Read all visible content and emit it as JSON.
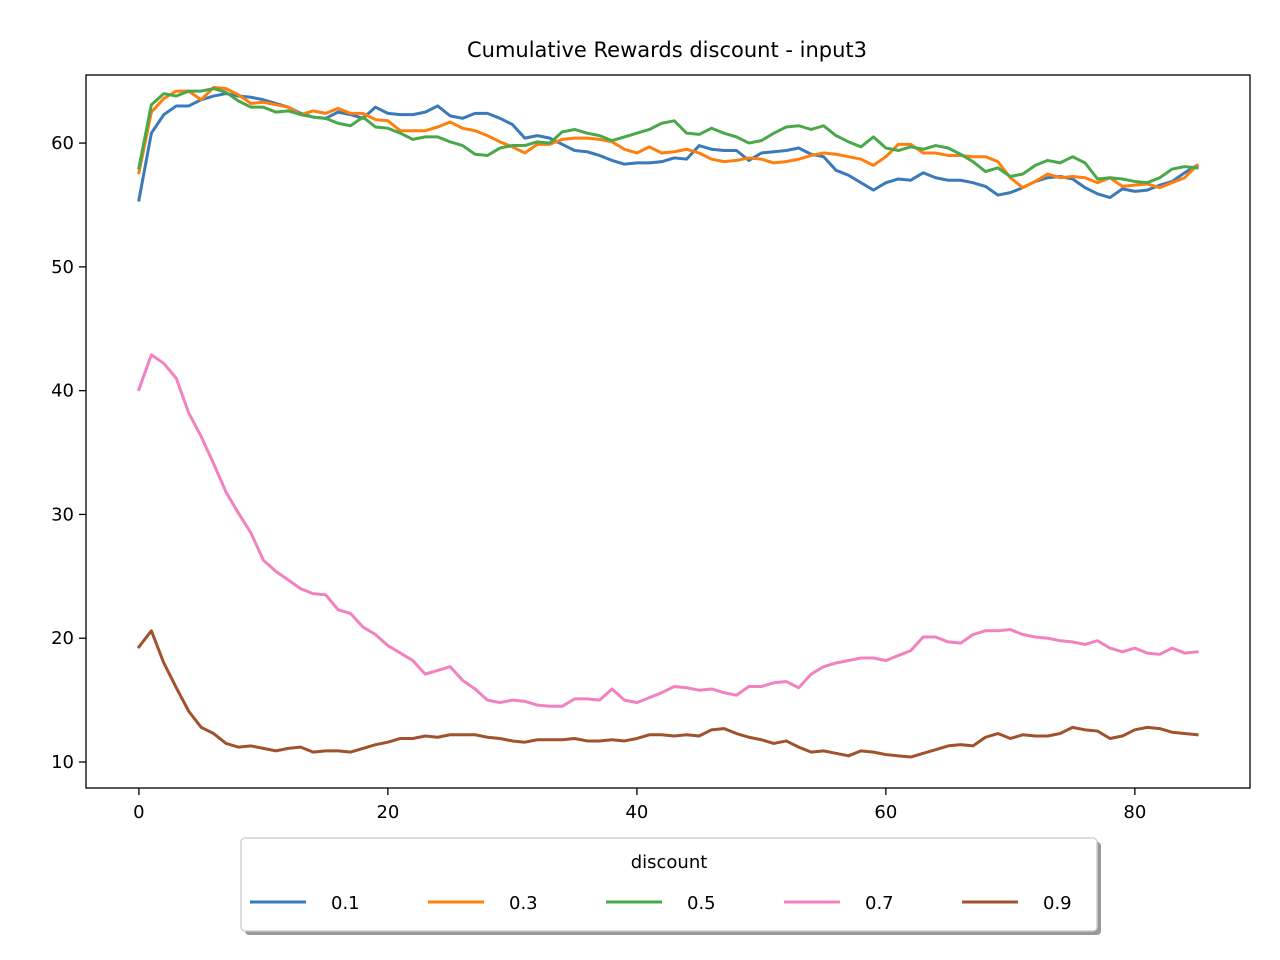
{
  "chart_data": {
    "type": "line",
    "title": "Cumulative Rewards discount - input3",
    "xlabel": "",
    "ylabel": "",
    "xlim": [
      -4.25,
      89.25
    ],
    "ylim": [
      7.9,
      65.5
    ],
    "xticks": [
      0,
      20,
      40,
      60,
      80
    ],
    "yticks": [
      10,
      20,
      30,
      40,
      50,
      60
    ],
    "grid": false,
    "legend": {
      "title": "discount",
      "placement": "bottom-center",
      "columns": 5
    },
    "series": [
      {
        "name": "0.1",
        "color": "#3a7ab8",
        "values": [
          55.4,
          60.8,
          62.3,
          63.0,
          63.0,
          63.5,
          63.8,
          64.0,
          63.8,
          63.7,
          63.5,
          63.2,
          62.9,
          62.4,
          62.1,
          62.0,
          62.5,
          62.3,
          62.0,
          62.9,
          62.4,
          62.3,
          62.3,
          62.5,
          63.0,
          62.2,
          62.0,
          62.4,
          62.4,
          62.0,
          61.5,
          60.4,
          60.6,
          60.4,
          59.9,
          59.4,
          59.3,
          59.0,
          58.6,
          58.3,
          58.4,
          58.4,
          58.5,
          58.8,
          58.7,
          59.8,
          59.5,
          59.4,
          59.4,
          58.6,
          59.2,
          59.3,
          59.4,
          59.6,
          59.1,
          58.9,
          57.8,
          57.4,
          56.8,
          56.2,
          56.8,
          57.1,
          57.0,
          57.6,
          57.2,
          57.0,
          57.0,
          56.8,
          56.5,
          55.8,
          56.0,
          56.4,
          56.9,
          57.2,
          57.3,
          57.1,
          56.4,
          55.9,
          55.6,
          56.3,
          56.1,
          56.2,
          56.6,
          56.9,
          57.6,
          58.2
        ]
      },
      {
        "name": "0.3",
        "color": "#ff7f0e",
        "values": [
          57.6,
          62.5,
          63.6,
          64.2,
          64.2,
          63.5,
          64.5,
          64.4,
          63.9,
          63.2,
          63.3,
          63.1,
          62.9,
          62.3,
          62.6,
          62.4,
          62.8,
          62.4,
          62.4,
          61.9,
          61.8,
          61.0,
          61.0,
          61.0,
          61.3,
          61.7,
          61.2,
          61.0,
          60.6,
          60.1,
          59.7,
          59.2,
          59.9,
          59.9,
          60.3,
          60.4,
          60.4,
          60.3,
          60.1,
          59.5,
          59.2,
          59.7,
          59.2,
          59.3,
          59.5,
          59.2,
          58.7,
          58.5,
          58.6,
          58.8,
          58.7,
          58.4,
          58.5,
          58.7,
          59.0,
          59.2,
          59.1,
          58.9,
          58.7,
          58.2,
          58.9,
          59.9,
          59.9,
          59.2,
          59.2,
          59.0,
          59.0,
          58.9,
          58.9,
          58.5,
          57.2,
          56.4,
          56.9,
          57.5,
          57.2,
          57.3,
          57.2,
          56.8,
          57.2,
          56.5,
          56.6,
          56.7,
          56.4,
          56.8,
          57.2,
          58.2
        ]
      },
      {
        "name": "0.5",
        "color": "#4aa84a",
        "values": [
          58.0,
          63.1,
          64.0,
          63.8,
          64.2,
          64.2,
          64.4,
          64.1,
          63.4,
          62.9,
          62.9,
          62.5,
          62.6,
          62.3,
          62.1,
          62.0,
          61.6,
          61.4,
          62.1,
          61.3,
          61.2,
          60.8,
          60.3,
          60.5,
          60.5,
          60.1,
          59.8,
          59.1,
          59.0,
          59.6,
          59.8,
          59.8,
          60.1,
          60.0,
          60.9,
          61.1,
          60.8,
          60.6,
          60.2,
          60.5,
          60.8,
          61.1,
          61.6,
          61.8,
          60.8,
          60.7,
          61.2,
          60.8,
          60.5,
          60.0,
          60.2,
          60.8,
          61.3,
          61.4,
          61.1,
          61.4,
          60.6,
          60.1,
          59.7,
          60.5,
          59.6,
          59.4,
          59.7,
          59.5,
          59.8,
          59.6,
          59.1,
          58.5,
          57.7,
          58.0,
          57.3,
          57.5,
          58.2,
          58.6,
          58.4,
          58.9,
          58.4,
          57.1,
          57.2,
          57.1,
          56.9,
          56.8,
          57.2,
          57.9,
          58.1,
          58.0
        ]
      },
      {
        "name": "0.7",
        "color": "#f281c0",
        "values": [
          40.1,
          42.9,
          42.2,
          41.0,
          38.2,
          36.3,
          34.1,
          31.8,
          30.1,
          28.5,
          26.3,
          25.4,
          24.7,
          24.0,
          23.6,
          23.5,
          22.3,
          22.0,
          20.9,
          20.3,
          19.4,
          18.8,
          18.2,
          17.1,
          17.4,
          17.7,
          16.6,
          15.9,
          15.0,
          14.8,
          15.0,
          14.9,
          14.6,
          14.5,
          14.5,
          15.1,
          15.1,
          15.0,
          15.9,
          15.0,
          14.8,
          15.2,
          15.6,
          16.1,
          16.0,
          15.8,
          15.9,
          15.6,
          15.4,
          16.1,
          16.1,
          16.4,
          16.5,
          16.0,
          17.1,
          17.7,
          18.0,
          18.2,
          18.4,
          18.4,
          18.2,
          18.6,
          19.0,
          20.1,
          20.1,
          19.7,
          19.6,
          20.3,
          20.6,
          20.6,
          20.7,
          20.3,
          20.1,
          20.0,
          19.8,
          19.7,
          19.5,
          19.8,
          19.2,
          18.9,
          19.2,
          18.8,
          18.7,
          19.2,
          18.8,
          18.9
        ]
      },
      {
        "name": "0.9",
        "color": "#a0522d",
        "values": [
          19.3,
          20.6,
          18.0,
          16.0,
          14.1,
          12.8,
          12.3,
          11.5,
          11.2,
          11.3,
          11.1,
          10.9,
          11.1,
          11.2,
          10.8,
          10.9,
          10.9,
          10.8,
          11.1,
          11.4,
          11.6,
          11.9,
          11.9,
          12.1,
          12.0,
          12.2,
          12.2,
          12.2,
          12.0,
          11.9,
          11.7,
          11.6,
          11.8,
          11.8,
          11.8,
          11.9,
          11.7,
          11.7,
          11.8,
          11.7,
          11.9,
          12.2,
          12.2,
          12.1,
          12.2,
          12.1,
          12.6,
          12.7,
          12.3,
          12.0,
          11.8,
          11.5,
          11.7,
          11.2,
          10.8,
          10.9,
          10.7,
          10.5,
          10.9,
          10.8,
          10.6,
          10.5,
          10.4,
          10.7,
          11.0,
          11.3,
          11.4,
          11.3,
          12.0,
          12.3,
          11.9,
          12.2,
          12.1,
          12.1,
          12.3,
          12.8,
          12.6,
          12.5,
          11.9,
          12.1,
          12.6,
          12.8,
          12.7,
          12.4,
          12.3,
          12.2
        ]
      }
    ]
  }
}
